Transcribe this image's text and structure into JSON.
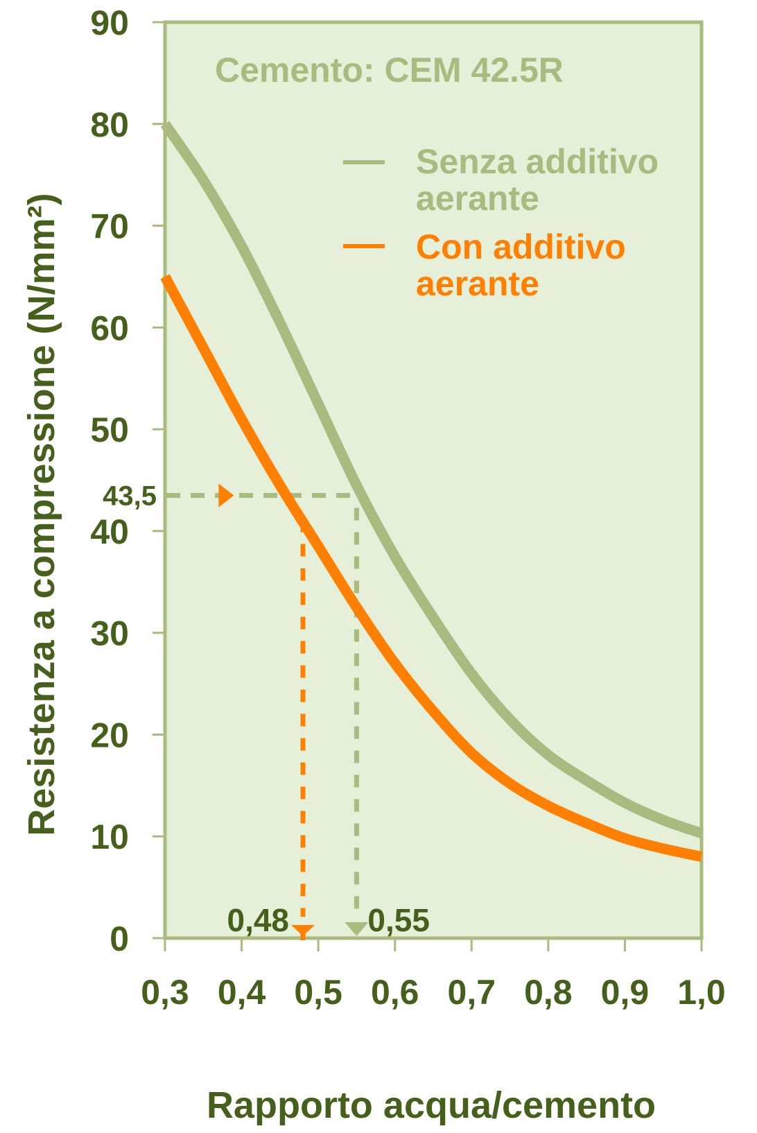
{
  "chart_data": {
    "type": "line",
    "title": "",
    "subtitle": "Cemento: CEM 42.5R",
    "xlabel": "Rapporto acqua/cemento",
    "ylabel": "Resistenza a compressione (N/mm²)",
    "xlim": [
      0.3,
      1.0
    ],
    "ylim": [
      0,
      90
    ],
    "grid": false,
    "legend_position": "upper right (inside plot)",
    "x_ticks": [
      0.3,
      0.4,
      0.5,
      0.6,
      0.7,
      0.8,
      0.9,
      1.0
    ],
    "x_tick_labels": [
      "0,3",
      "0,4",
      "0,5",
      "0,6",
      "0,7",
      "0,8",
      "0,9",
      "1,0"
    ],
    "y_ticks": [
      0,
      10,
      20,
      30,
      40,
      50,
      60,
      70,
      80,
      90
    ],
    "y_tick_labels": [
      "0",
      "10",
      "20",
      "30",
      "40",
      "50",
      "60",
      "70",
      "80",
      "90"
    ],
    "x": [
      0.3,
      0.35,
      0.4,
      0.45,
      0.5,
      0.55,
      0.6,
      0.65,
      0.7,
      0.75,
      0.8,
      0.85,
      0.9,
      0.95,
      1.0
    ],
    "series": [
      {
        "name": "Senza additivo aerante",
        "legend_lines": [
          "Senza additivo",
          "aerante"
        ],
        "color": "#a9bb7e",
        "values": [
          80,
          74.5,
          68,
          60.5,
          52.5,
          44.5,
          37.5,
          31.5,
          26,
          21.5,
          18,
          15.5,
          13.3,
          11.6,
          10.3
        ]
      },
      {
        "name": "Con additivo aerante",
        "legend_lines": [
          "Con additivo",
          "aerante"
        ],
        "color": "#ff7f00",
        "values": [
          65,
          58,
          51,
          44.5,
          38.5,
          32.5,
          27,
          22.3,
          18.2,
          15.2,
          13,
          11.3,
          9.8,
          8.8,
          8.0
        ]
      }
    ],
    "annotations": {
      "reference_strength": {
        "label": "43,5",
        "value": 43.5
      },
      "ratio_with_air": {
        "label": "0,48",
        "value": 0.48,
        "color": "#ff7f00"
      },
      "ratio_without_air": {
        "label": "0,55",
        "value": 0.55,
        "color": "#a9bb7e"
      }
    }
  },
  "colors": {
    "plot_background": "#e6efd8",
    "axis": "#a9bb7e",
    "text_dark_green": "#44601a",
    "series_green": "#a9bb7e",
    "series_orange": "#ff7f00"
  }
}
